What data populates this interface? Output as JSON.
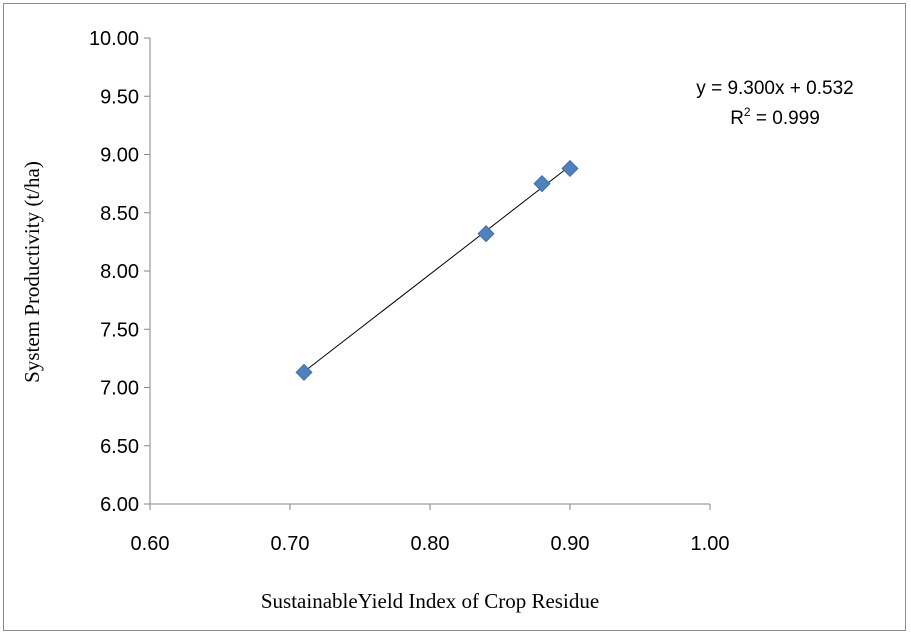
{
  "chart_data": {
    "type": "scatter",
    "xlabel": "SustainableYield Index of Crop Residue",
    "ylabel": "System Productivity (t/ha)",
    "xlim": [
      0.6,
      1.0
    ],
    "ylim": [
      6.0,
      10.0
    ],
    "xticks": [
      "0.60",
      "0.70",
      "0.80",
      "0.90",
      "1.00"
    ],
    "yticks": [
      "6.00",
      "6.50",
      "7.00",
      "7.50",
      "8.00",
      "8.50",
      "9.00",
      "9.50",
      "10.00"
    ],
    "series": [
      {
        "marker": "diamond",
        "color": "#4f81bd",
        "points": [
          {
            "x": 0.71,
            "y": 7.13
          },
          {
            "x": 0.84,
            "y": 8.32
          },
          {
            "x": 0.88,
            "y": 8.75
          },
          {
            "x": 0.9,
            "y": 8.88
          }
        ]
      }
    ],
    "trendline": {
      "slope": 9.3,
      "intercept": 0.532,
      "x_from": 0.71,
      "x_to": 0.9,
      "color": "#000000"
    },
    "annotations": {
      "equation": "y = 9.300x + 0.532",
      "r_squared_prefix": "R",
      "r_squared_sup": "2",
      "r_squared_value": " = 0.999"
    },
    "grid": false,
    "legend": "none"
  }
}
